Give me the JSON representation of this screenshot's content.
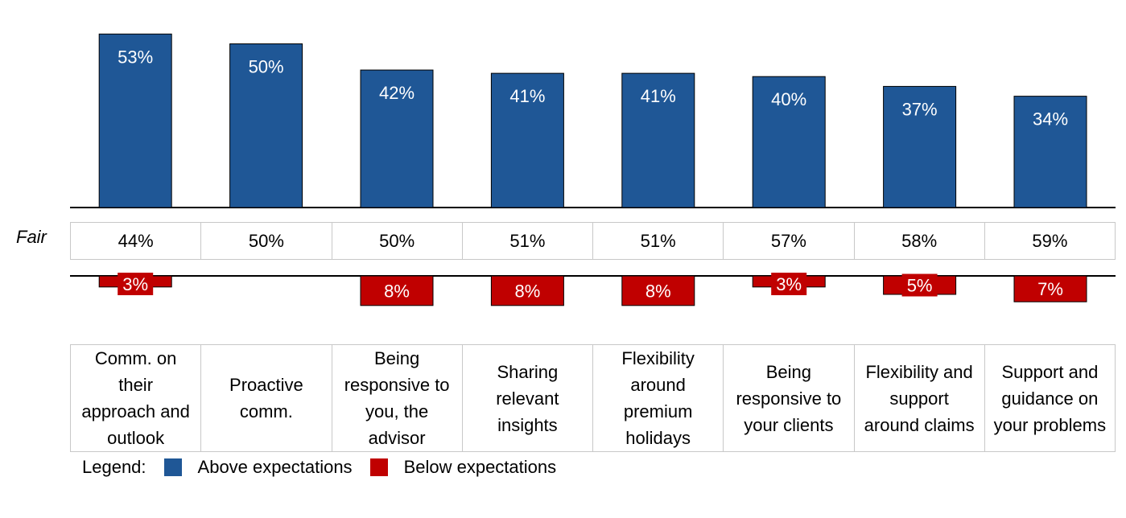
{
  "chart_data": {
    "type": "bar",
    "categories": [
      "Comm. on\ntheir\napproach and\noutlook",
      "Proactive\ncomm.",
      "Being\nresponsive to\nyou, the\nadvisor",
      "Sharing\nrelevant\ninsights",
      "Flexibility\naround\npremium\nholidays",
      "Being\nresponsive to\nyour clients",
      "Flexibility and\nsupport\naround claims",
      "Support and\nguidance on\nyour problems"
    ],
    "series": [
      {
        "name": "Above expectations",
        "color": "#1f5796",
        "values": [
          53,
          50,
          42,
          41,
          41,
          40,
          37,
          34
        ],
        "labels": [
          "53%",
          "50%",
          "42%",
          "41%",
          "41%",
          "40%",
          "37%",
          "34%"
        ]
      },
      {
        "name": "Fair",
        "values": [
          44,
          50,
          50,
          51,
          51,
          57,
          58,
          59
        ],
        "labels": [
          "44%",
          "50%",
          "50%",
          "51%",
          "51%",
          "57%",
          "58%",
          "59%"
        ]
      },
      {
        "name": "Below expectations",
        "color": "#c00000",
        "values": [
          3,
          0,
          8,
          8,
          8,
          3,
          5,
          7
        ],
        "labels": [
          "3%",
          "",
          "8%",
          "8%",
          "8%",
          "3%",
          "5%",
          "7%"
        ]
      }
    ],
    "row_label": "Fair",
    "legend": {
      "title": "Legend:",
      "placement": "bottom-left"
    }
  }
}
